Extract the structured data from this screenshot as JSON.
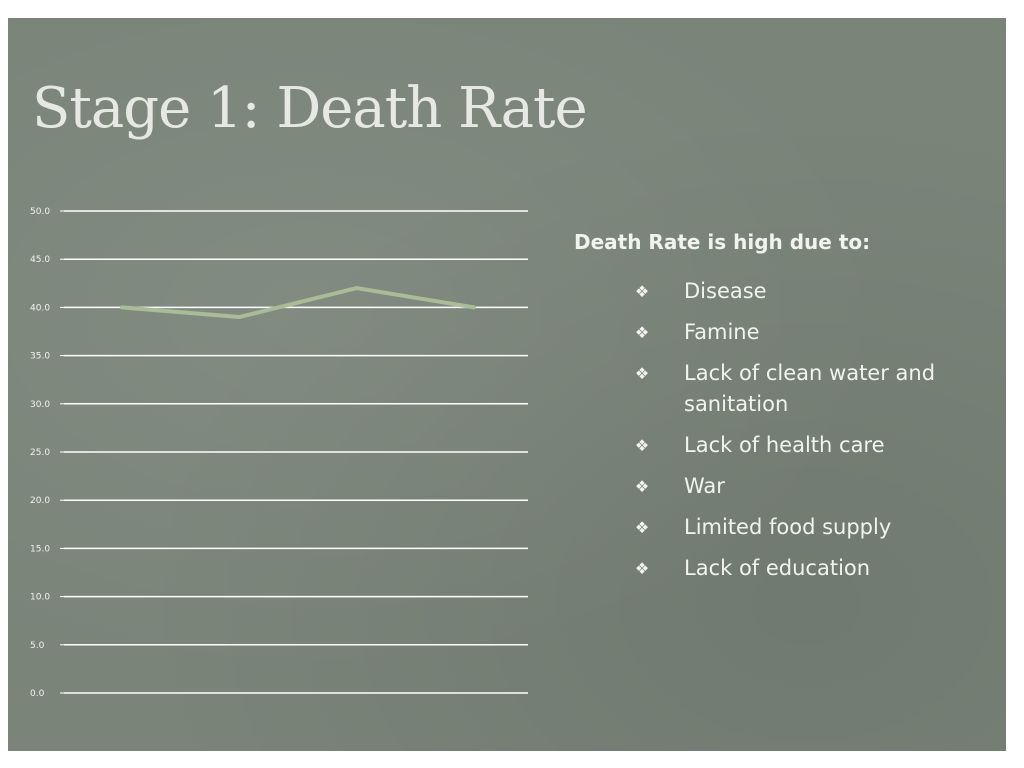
{
  "slide": {
    "title": "Stage 1: Death Rate",
    "colors": {
      "background": "#7a8479",
      "gridline": "#ffffff",
      "series": "#a9bc98",
      "text": "#f1f3ef"
    }
  },
  "chart_data": {
    "type": "line",
    "title": "",
    "xlabel": "",
    "ylabel": "",
    "ylim": [
      0,
      50
    ],
    "yticks": [
      "0.0",
      "5.0",
      "10.0",
      "15.0",
      "20.0",
      "25.0",
      "30.0",
      "35.0",
      "40.0",
      "45.0",
      "50.0"
    ],
    "grid": true,
    "legend": "none",
    "series": [
      {
        "values": [
          40,
          39,
          42,
          40
        ]
      }
    ]
  },
  "causes": {
    "lead": "Death Rate is high due to:",
    "bullet_icon": "diamond-bullet-icon",
    "items": [
      "Disease",
      "Famine",
      "Lack of clean water and sanitation",
      "Lack of health care",
      "War",
      "Limited food supply",
      "Lack of education"
    ]
  }
}
